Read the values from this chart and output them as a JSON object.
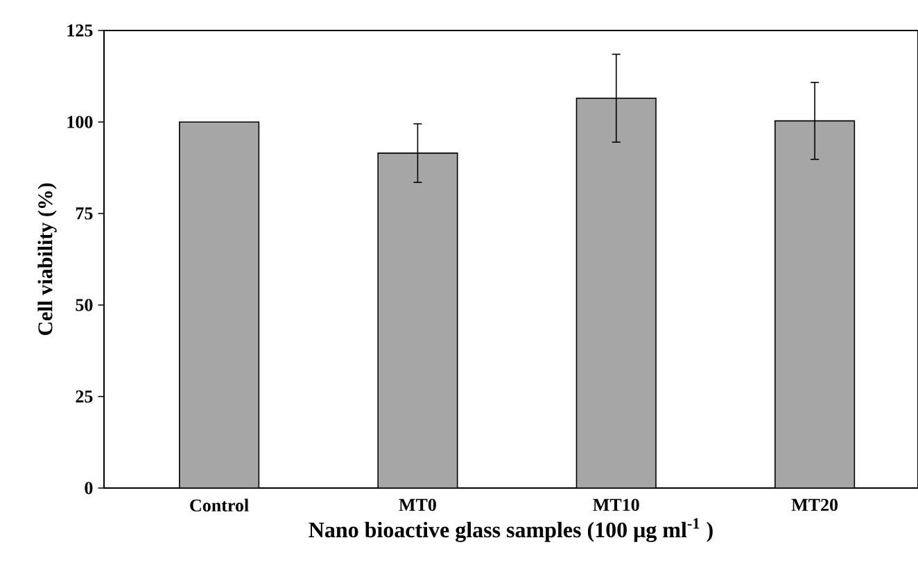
{
  "chart_data": {
    "type": "bar",
    "xlabel": "Nano bioactive glass samples (100 μg ml$^{-1}$ )",
    "ylabel": "Cell viability (%)",
    "categories": [
      "Control",
      "MT0",
      "MT10",
      "MT20"
    ],
    "values": [
      100,
      91.5,
      106.5,
      100.3
    ],
    "errors": [
      null,
      8,
      12,
      10.5
    ],
    "color": "#a6a6a6",
    "ylim": [
      0,
      125
    ],
    "yticks": [
      0,
      25,
      50,
      75,
      100,
      125
    ],
    "grid": false
  }
}
